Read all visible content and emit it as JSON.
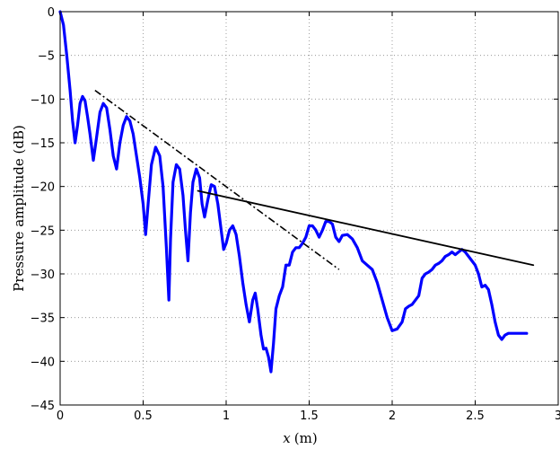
{
  "chart_data": {
    "type": "line",
    "title": "",
    "xlabel": "x (m)",
    "xlabel_var": "x",
    "xlabel_unit": "(m)",
    "ylabel": "Pressure amplitude (dB)",
    "xlim": [
      0,
      3
    ],
    "ylim": [
      -45,
      0
    ],
    "xticks": [
      0,
      0.5,
      1,
      1.5,
      2,
      2.5,
      3
    ],
    "xtick_labels": [
      "0",
      "0.5",
      "1",
      "1.5",
      "2",
      "2.5",
      "3"
    ],
    "yticks": [
      0,
      -5,
      -10,
      -15,
      -20,
      -25,
      -30,
      -35,
      -40,
      -45
    ],
    "ytick_labels": [
      "0",
      "−5",
      "−10",
      "−15",
      "−20",
      "−25",
      "−30",
      "−35",
      "−40",
      "−45"
    ],
    "grid": true,
    "series": [
      {
        "style": "solid-thick",
        "color": "#0000ff",
        "points": [
          [
            0.0,
            0.0
          ],
          [
            0.02,
            -1.5
          ],
          [
            0.04,
            -5
          ],
          [
            0.06,
            -9
          ],
          [
            0.075,
            -12.5
          ],
          [
            0.09,
            -15
          ],
          [
            0.105,
            -13
          ],
          [
            0.12,
            -10.5
          ],
          [
            0.135,
            -9.7
          ],
          [
            0.15,
            -10.2
          ],
          [
            0.165,
            -12
          ],
          [
            0.18,
            -14
          ],
          [
            0.2,
            -17
          ],
          [
            0.215,
            -15
          ],
          [
            0.24,
            -11.5
          ],
          [
            0.26,
            -10.5
          ],
          [
            0.28,
            -11
          ],
          [
            0.3,
            -13.5
          ],
          [
            0.32,
            -16.5
          ],
          [
            0.34,
            -18
          ],
          [
            0.36,
            -15
          ],
          [
            0.38,
            -13
          ],
          [
            0.4,
            -12
          ],
          [
            0.42,
            -12.5
          ],
          [
            0.44,
            -14
          ],
          [
            0.46,
            -16.5
          ],
          [
            0.48,
            -19
          ],
          [
            0.5,
            -22
          ],
          [
            0.515,
            -25.5
          ],
          [
            0.53,
            -22
          ],
          [
            0.55,
            -17.5
          ],
          [
            0.575,
            -15.5
          ],
          [
            0.6,
            -16.5
          ],
          [
            0.62,
            -20
          ],
          [
            0.64,
            -27
          ],
          [
            0.655,
            -33
          ],
          [
            0.665,
            -26
          ],
          [
            0.68,
            -19.5
          ],
          [
            0.7,
            -17.5
          ],
          [
            0.72,
            -18
          ],
          [
            0.74,
            -21
          ],
          [
            0.755,
            -25
          ],
          [
            0.77,
            -28.5
          ],
          [
            0.785,
            -23
          ],
          [
            0.8,
            -19.5
          ],
          [
            0.82,
            -18
          ],
          [
            0.84,
            -19
          ],
          [
            0.855,
            -22
          ],
          [
            0.87,
            -23.5
          ],
          [
            0.89,
            -21.5
          ],
          [
            0.91,
            -19.8
          ],
          [
            0.93,
            -20
          ],
          [
            0.95,
            -22
          ],
          [
            0.97,
            -25
          ],
          [
            0.985,
            -27.2
          ],
          [
            1.0,
            -26.5
          ],
          [
            1.02,
            -25
          ],
          [
            1.04,
            -24.5
          ],
          [
            1.06,
            -25.5
          ],
          [
            1.08,
            -28
          ],
          [
            1.1,
            -31
          ],
          [
            1.12,
            -33.5
          ],
          [
            1.14,
            -35.5
          ],
          [
            1.16,
            -33
          ],
          [
            1.175,
            -32.2
          ],
          [
            1.19,
            -34
          ],
          [
            1.21,
            -37
          ],
          [
            1.225,
            -38.6
          ],
          [
            1.24,
            -38.5
          ],
          [
            1.255,
            -39.5
          ],
          [
            1.27,
            -41.2
          ],
          [
            1.285,
            -38
          ],
          [
            1.3,
            -34
          ],
          [
            1.32,
            -32.5
          ],
          [
            1.34,
            -31.5
          ],
          [
            1.36,
            -29
          ],
          [
            1.38,
            -29
          ],
          [
            1.4,
            -27.5
          ],
          [
            1.42,
            -27
          ],
          [
            1.44,
            -27
          ],
          [
            1.46,
            -26.5
          ],
          [
            1.48,
            -25.8
          ],
          [
            1.5,
            -24.5
          ],
          [
            1.52,
            -24.5
          ],
          [
            1.54,
            -25
          ],
          [
            1.56,
            -25.8
          ],
          [
            1.58,
            -25
          ],
          [
            1.6,
            -24
          ],
          [
            1.62,
            -24
          ],
          [
            1.64,
            -24.3
          ],
          [
            1.66,
            -25.8
          ],
          [
            1.68,
            -26.3
          ],
          [
            1.7,
            -25.6
          ],
          [
            1.73,
            -25.5
          ],
          [
            1.76,
            -26
          ],
          [
            1.79,
            -27
          ],
          [
            1.82,
            -28.5
          ],
          [
            1.85,
            -29
          ],
          [
            1.88,
            -29.5
          ],
          [
            1.91,
            -31
          ],
          [
            1.94,
            -33
          ],
          [
            1.97,
            -35
          ],
          [
            2.0,
            -36.5
          ],
          [
            2.03,
            -36.3
          ],
          [
            2.06,
            -35.5
          ],
          [
            2.08,
            -34
          ],
          [
            2.1,
            -33.7
          ],
          [
            2.12,
            -33.5
          ],
          [
            2.14,
            -33
          ],
          [
            2.16,
            -32.5
          ],
          [
            2.18,
            -30.5
          ],
          [
            2.2,
            -30
          ],
          [
            2.22,
            -29.8
          ],
          [
            2.24,
            -29.5
          ],
          [
            2.26,
            -29
          ],
          [
            2.28,
            -28.8
          ],
          [
            2.3,
            -28.5
          ],
          [
            2.32,
            -28
          ],
          [
            2.34,
            -27.8
          ],
          [
            2.36,
            -27.5
          ],
          [
            2.38,
            -27.8
          ],
          [
            2.4,
            -27.5
          ],
          [
            2.42,
            -27.2
          ],
          [
            2.44,
            -27.5
          ],
          [
            2.46,
            -28
          ],
          [
            2.48,
            -28.5
          ],
          [
            2.5,
            -29
          ],
          [
            2.52,
            -30
          ],
          [
            2.54,
            -31.5
          ],
          [
            2.56,
            -31.3
          ],
          [
            2.58,
            -31.8
          ],
          [
            2.6,
            -33.5
          ],
          [
            2.62,
            -35.5
          ],
          [
            2.64,
            -37
          ],
          [
            2.66,
            -37.5
          ],
          [
            2.68,
            -37
          ],
          [
            2.7,
            -36.8
          ],
          [
            2.74,
            -36.8
          ],
          [
            2.78,
            -36.8
          ],
          [
            2.81,
            -36.8
          ]
        ]
      },
      {
        "style": "dash-dot",
        "color": "#000000",
        "points": [
          [
            0.21,
            -9.0
          ],
          [
            1.68,
            -29.5
          ]
        ]
      },
      {
        "style": "solid",
        "color": "#000000",
        "points": [
          [
            0.83,
            -20.5
          ],
          [
            2.85,
            -29.0
          ]
        ]
      }
    ]
  }
}
